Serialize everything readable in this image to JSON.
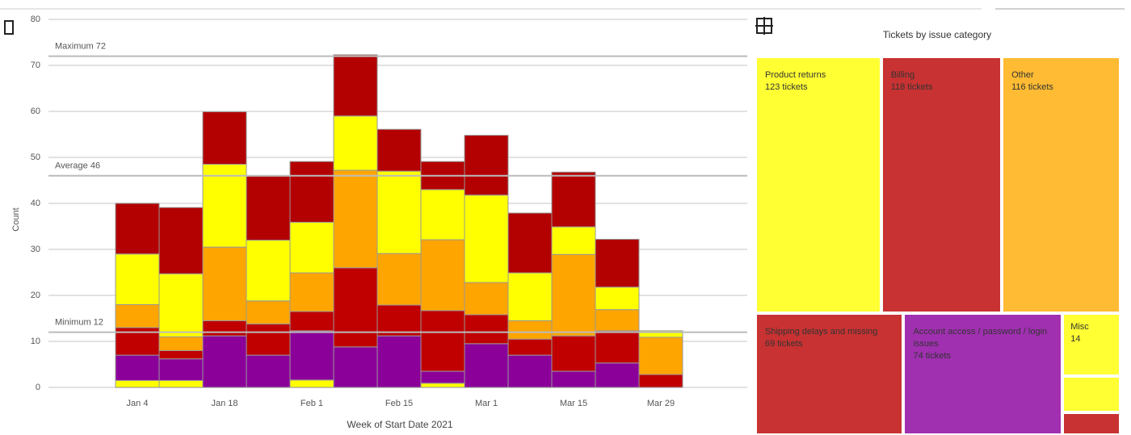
{
  "chart_data": [
    {
      "type": "bar",
      "stacked": true,
      "y_label": "Count",
      "x_label": "Week of Start Date 2021",
      "categories": [
        "Jan 4",
        null,
        "Jan 18",
        null,
        "Feb 1",
        null,
        "Feb 15",
        null,
        "Mar 1",
        null,
        "Mar 15",
        null,
        "Mar 29"
      ],
      "series": [
        {
          "color": "#ffff00",
          "values": [
            1.5,
            1.5,
            0,
            0,
            1.6,
            0,
            0,
            0.9,
            0,
            0,
            0,
            0,
            0
          ]
        },
        {
          "color": "#8b0099",
          "values": [
            5.5,
            4.7,
            11.2,
            7,
            10.7,
            8.8,
            11.2,
            2.6,
            9.5,
            7,
            3.5,
            5.3,
            0
          ]
        },
        {
          "color": "#c00000",
          "values": [
            6,
            1.8,
            3.3,
            6.8,
            4.2,
            17.2,
            6.7,
            13.2,
            6.3,
            3.5,
            7.7,
            7,
            2.8
          ]
        },
        {
          "color": "#ffa500",
          "values": [
            5,
            3,
            16,
            5,
            8.4,
            21.2,
            11.2,
            15.4,
            7,
            4,
            17.7,
            4.6,
            8.1
          ]
        },
        {
          "color": "#ffff00",
          "values": [
            11,
            13.7,
            18,
            13.2,
            11,
            11.8,
            17.9,
            10.9,
            19,
            10.4,
            6,
            4.9,
            1.4
          ]
        },
        {
          "color": "#b30000",
          "values": [
            11,
            14.4,
            11.4,
            13.9,
            13.2,
            13.3,
            9.1,
            6.1,
            13,
            13,
            11.9,
            10.4,
            0
          ]
        }
      ],
      "ylim": [
        0,
        80
      ],
      "yticks": [
        0,
        10,
        20,
        30,
        40,
        50,
        60,
        70,
        80
      ],
      "grid": true,
      "reference_lines": [
        {
          "value": 72,
          "label": "Maximum 72"
        },
        {
          "value": 46,
          "label": "Average 46"
        },
        {
          "value": 12,
          "label": "Minimum 12"
        }
      ]
    },
    {
      "type": "treemap",
      "title": "Tickets by issue category",
      "categories": [
        "Product returns",
        "Billing",
        "Other",
        "Shipping delays and missing",
        "Account access / password / login issues",
        "Misc",
        null,
        null
      ],
      "values": [
        123,
        118,
        116,
        69,
        74,
        14,
        8,
        5
      ],
      "value_labels": [
        "123 tickets",
        "118 tickets",
        "116 tickets",
        "69 tickets",
        "74 tickets",
        "14",
        null,
        null
      ],
      "colors": [
        "#ffff33",
        "#c83232",
        "#ffbb33",
        "#c83232",
        "#a030b0",
        "#ffff33",
        "#ffff33",
        "#c83232"
      ]
    }
  ]
}
